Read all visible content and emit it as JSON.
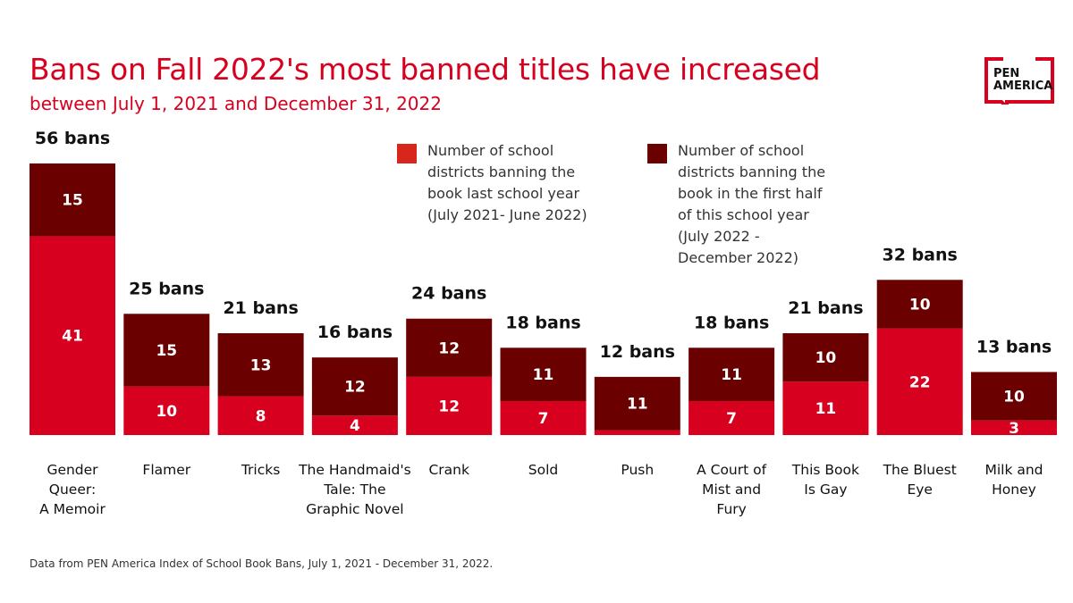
{
  "title": "Bans on Fall 2022's most banned titles have increased",
  "subtitle": "between July 1, 2021 and December 31, 2022",
  "logo": {
    "line1": "PEN",
    "line2": "AMERICA"
  },
  "footnote": "Data from PEN America Index of School Book Bans, July 1, 2021 - December 31, 2022.",
  "colors": {
    "last_year": "#d7001e",
    "this_year": "#6b0000",
    "legend_last": "#d9261c",
    "text_red": "#d7001e"
  },
  "chart_data": {
    "type": "bar",
    "stacked": true,
    "title": "Bans on Fall 2022's most banned titles have increased",
    "categories": [
      [
        "Gender",
        "Queer:",
        "A Memoir"
      ],
      [
        "Flamer"
      ],
      [
        "Tricks"
      ],
      [
        "The Handmaid's",
        "Tale: The",
        "Graphic Novel"
      ],
      [
        "Crank"
      ],
      [
        "Sold"
      ],
      [
        "Push"
      ],
      [
        "A Court of",
        "Mist and",
        "Fury"
      ],
      [
        "This Book",
        "Is Gay"
      ],
      [
        "The Bluest",
        "Eye"
      ],
      [
        "Milk and",
        "Honey"
      ]
    ],
    "totals": [
      "56 bans",
      "25 bans",
      "21 bans",
      "16 bans",
      "24 bans",
      "18 bans",
      "12 bans",
      "18 bans",
      "21 bans",
      "32 bans",
      "13 bans"
    ],
    "series": [
      {
        "name": "Number of school districts banning the book last school year (July 2021- June 2022)",
        "legend_lines": [
          "Number of school",
          "districts banning the",
          "book last school year",
          "(July 2021- June 2022)"
        ],
        "values": [
          41,
          10,
          8,
          4,
          12,
          7,
          1,
          7,
          11,
          22,
          3
        ],
        "labels": [
          "41",
          "10",
          "8",
          "4",
          "12",
          "7",
          "",
          "7",
          "11",
          "22",
          "3"
        ]
      },
      {
        "name": "Number of school districts banning the book in the first half of this school year (July 2022 - December 2022)",
        "legend_lines": [
          "Number of school",
          "districts banning the",
          "book in the first half",
          "of this school year",
          "(July 2022 -",
          "December 2022)"
        ],
        "values": [
          15,
          15,
          13,
          12,
          12,
          11,
          11,
          11,
          10,
          10,
          10
        ],
        "labels": [
          "15",
          "15",
          "13",
          "12",
          "12",
          "11",
          "11",
          "11",
          "10",
          "10",
          "10"
        ]
      }
    ],
    "ylim": [
      0,
      56
    ],
    "grid": false,
    "legend_placement": "top-center"
  }
}
